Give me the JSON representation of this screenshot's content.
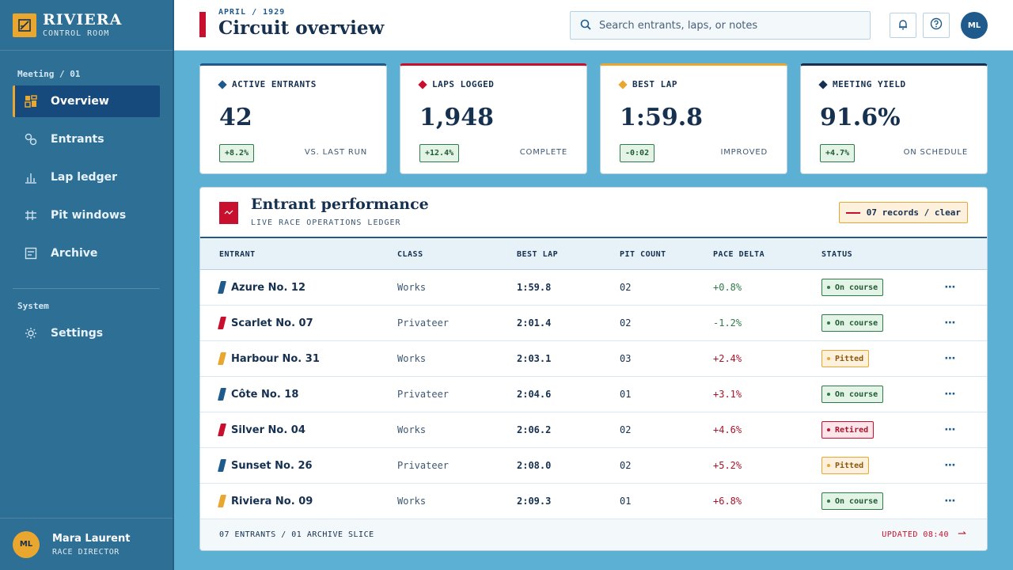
{
  "brand": {
    "name": "RIVIERA",
    "subtitle": "CONTROL ROOM"
  },
  "sidebar": {
    "section_main": "Meeting / 01",
    "items": [
      {
        "label": "Overview",
        "icon": "dashboard-icon",
        "active": true
      },
      {
        "label": "Entrants",
        "icon": "entrants-icon"
      },
      {
        "label": "Lap ledger",
        "icon": "bar-chart-icon"
      },
      {
        "label": "Pit windows",
        "icon": "grid-icon"
      },
      {
        "label": "Archive",
        "icon": "archive-icon"
      }
    ],
    "section_system": "System",
    "settings_label": "Settings"
  },
  "user": {
    "initials": "ML",
    "name": "Mara Laurent",
    "role": "RACE DIRECTOR"
  },
  "header": {
    "eyebrow": "APRIL / 1929",
    "title": "Circuit overview",
    "search_placeholder": "Search entrants, laps, or notes",
    "avatar_initials": "ML"
  },
  "colors": {
    "blue": "#1e5b8c",
    "red": "#c8102e",
    "gold": "#e9a730",
    "navy": "#16304f"
  },
  "kpis": [
    {
      "label": "ACTIVE ENTRANTS",
      "value": "42",
      "badge": "+8.2%",
      "note": "VS. LAST RUN",
      "color": "#1e5b8c"
    },
    {
      "label": "LAPS LOGGED",
      "value": "1,948",
      "badge": "+12.4%",
      "note": "COMPLETE",
      "color": "#c8102e"
    },
    {
      "label": "BEST LAP",
      "value": "1:59.8",
      "badge": "-0:02",
      "note": "IMPROVED",
      "color": "#e9a730"
    },
    {
      "label": "MEETING YIELD",
      "value": "91.6%",
      "badge": "+4.7%",
      "note": "ON SCHEDULE",
      "color": "#16304f"
    }
  ],
  "table": {
    "title": "Entrant performance",
    "subtitle": "LIVE RACE OPERATIONS LEDGER",
    "records_label": "07 records / clear",
    "columns": [
      "ENTRANT",
      "CLASS",
      "BEST LAP",
      "PIT COUNT",
      "PACE DELTA",
      "STATUS"
    ],
    "rows": [
      {
        "entrant": "Azure No. 12",
        "stripe": "#1e5b8c",
        "class": "Works",
        "best_lap": "1:59.8",
        "pit": "02",
        "delta": "+0.8%",
        "delta_color": "#2f7a4a",
        "status": "On course",
        "status_type": "ok"
      },
      {
        "entrant": "Scarlet No. 07",
        "stripe": "#c8102e",
        "class": "Privateer",
        "best_lap": "2:01.4",
        "pit": "02",
        "delta": "-1.2%",
        "delta_color": "#2f7a4a",
        "status": "On course",
        "status_type": "ok"
      },
      {
        "entrant": "Harbour No. 31",
        "stripe": "#e9a730",
        "class": "Works",
        "best_lap": "2:03.1",
        "pit": "03",
        "delta": "+2.4%",
        "delta_color": "#a8142c",
        "status": "Pitted",
        "status_type": "pit"
      },
      {
        "entrant": "Côte No. 18",
        "stripe": "#1e5b8c",
        "class": "Privateer",
        "best_lap": "2:04.6",
        "pit": "01",
        "delta": "+3.1%",
        "delta_color": "#a8142c",
        "status": "On course",
        "status_type": "ok"
      },
      {
        "entrant": "Silver No. 04",
        "stripe": "#c8102e",
        "class": "Works",
        "best_lap": "2:06.2",
        "pit": "02",
        "delta": "+4.6%",
        "delta_color": "#a8142c",
        "status": "Retired",
        "status_type": "ret"
      },
      {
        "entrant": "Sunset No. 26",
        "stripe": "#1e5b8c",
        "class": "Privateer",
        "best_lap": "2:08.0",
        "pit": "02",
        "delta": "+5.2%",
        "delta_color": "#a8142c",
        "status": "Pitted",
        "status_type": "pit"
      },
      {
        "entrant": "Riviera No. 09",
        "stripe": "#e9a730",
        "class": "Works",
        "best_lap": "2:09.3",
        "pit": "01",
        "delta": "+6.8%",
        "delta_color": "#a8142c",
        "status": "On course",
        "status_type": "ok"
      }
    ],
    "footer_left": "07 ENTRANTS / 01 ARCHIVE SLICE",
    "footer_right": "UPDATED 08:40"
  }
}
